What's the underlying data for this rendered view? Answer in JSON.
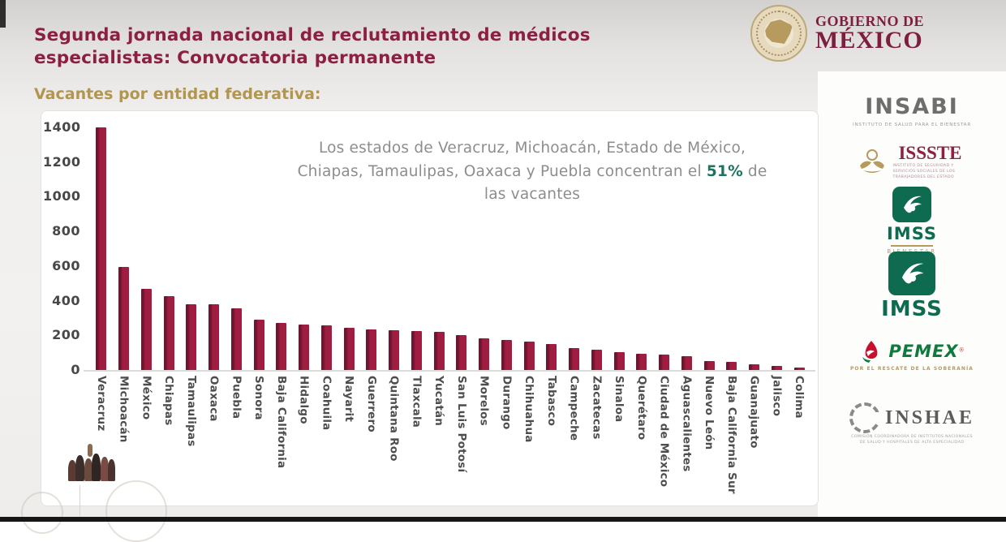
{
  "slide": {
    "title": "Segunda jornada nacional de reclutamiento de  médicos especialistas: Convocatoria permanente",
    "subtitle": "Vacantes por entidad federativa:",
    "annotation": {
      "pre": "Los estados de Veracruz, Michoacán, Estado de México, Chiapas, Tamaulipas, Oaxaca y Puebla concentran el ",
      "highlight": "51%",
      "post": " de las vacantes"
    }
  },
  "chart_data": {
    "type": "bar",
    "title": "Vacantes por entidad federativa",
    "xlabel": "",
    "ylabel": "",
    "ylim": [
      0,
      1400
    ],
    "yticks": [
      0,
      200,
      400,
      600,
      800,
      1000,
      1200,
      1400
    ],
    "grid": false,
    "legend": "none",
    "bar_color": "#a01d42",
    "categories": [
      "Veracruz",
      "Michoacán",
      "México",
      "Chiapas",
      "Tamaulipas",
      "Oaxaca",
      "Puebla",
      "Sonora",
      "Baja California",
      "Hidalgo",
      "Coahuila",
      "Nayarit",
      "Guerrero",
      "Quintana Roo",
      "Tlaxcala",
      "Yucatán",
      "San Luis Potosí",
      "Morelos",
      "Durango",
      "Chihuahua",
      "Tabasco",
      "Campeche",
      "Zacatecas",
      "Sinaloa",
      "Querétaro",
      "Ciudad de México",
      "Aguascalientes",
      "Nuevo León",
      "Baja California Sur",
      "Guanajuato",
      "Jalisco",
      "Colima"
    ],
    "values": [
      1400,
      595,
      470,
      425,
      380,
      378,
      355,
      290,
      272,
      262,
      256,
      245,
      232,
      228,
      224,
      222,
      200,
      183,
      173,
      163,
      148,
      128,
      117,
      105,
      94,
      90,
      78,
      52,
      45,
      33,
      25,
      12
    ]
  },
  "header_logo": {
    "line1": "GOBIERNO DE",
    "line2": "MÉXICO"
  },
  "sidebar": {
    "insabi": {
      "name": "INSABI",
      "tagline": "INSTITUTO DE SALUD PARA EL BIENESTAR"
    },
    "issste": {
      "name": "ISSSTE",
      "tagline": "INSTITUTO DE SEGURIDAD Y SERVICIOS SOCIALES DE LOS TRABAJADORES DEL ESTADO"
    },
    "imss_bienestar": {
      "name": "IMSS",
      "sub": "BIENESTAR"
    },
    "imss": {
      "name": "IMSS"
    },
    "pemex": {
      "name": "PEMEX",
      "reg": "®",
      "tagline": "POR EL RESCATE DE LA SOBERANÍA"
    },
    "inshae": {
      "name": "INSHAE",
      "tagline": "COMISIÓN COORDINADORA DE INSTITUTOS NACIONALES DE SALUD Y HOSPITALES DE ALTA ESPECIALIDAD"
    }
  },
  "colors": {
    "title": "#8c1f42",
    "subtitle": "#b3964e",
    "bar": "#a01d42",
    "annotation_highlight": "#1c7360",
    "imss_green": "#0e6b4f",
    "pemex_green": "#0f7a3d",
    "gold": "#b79a5e"
  }
}
